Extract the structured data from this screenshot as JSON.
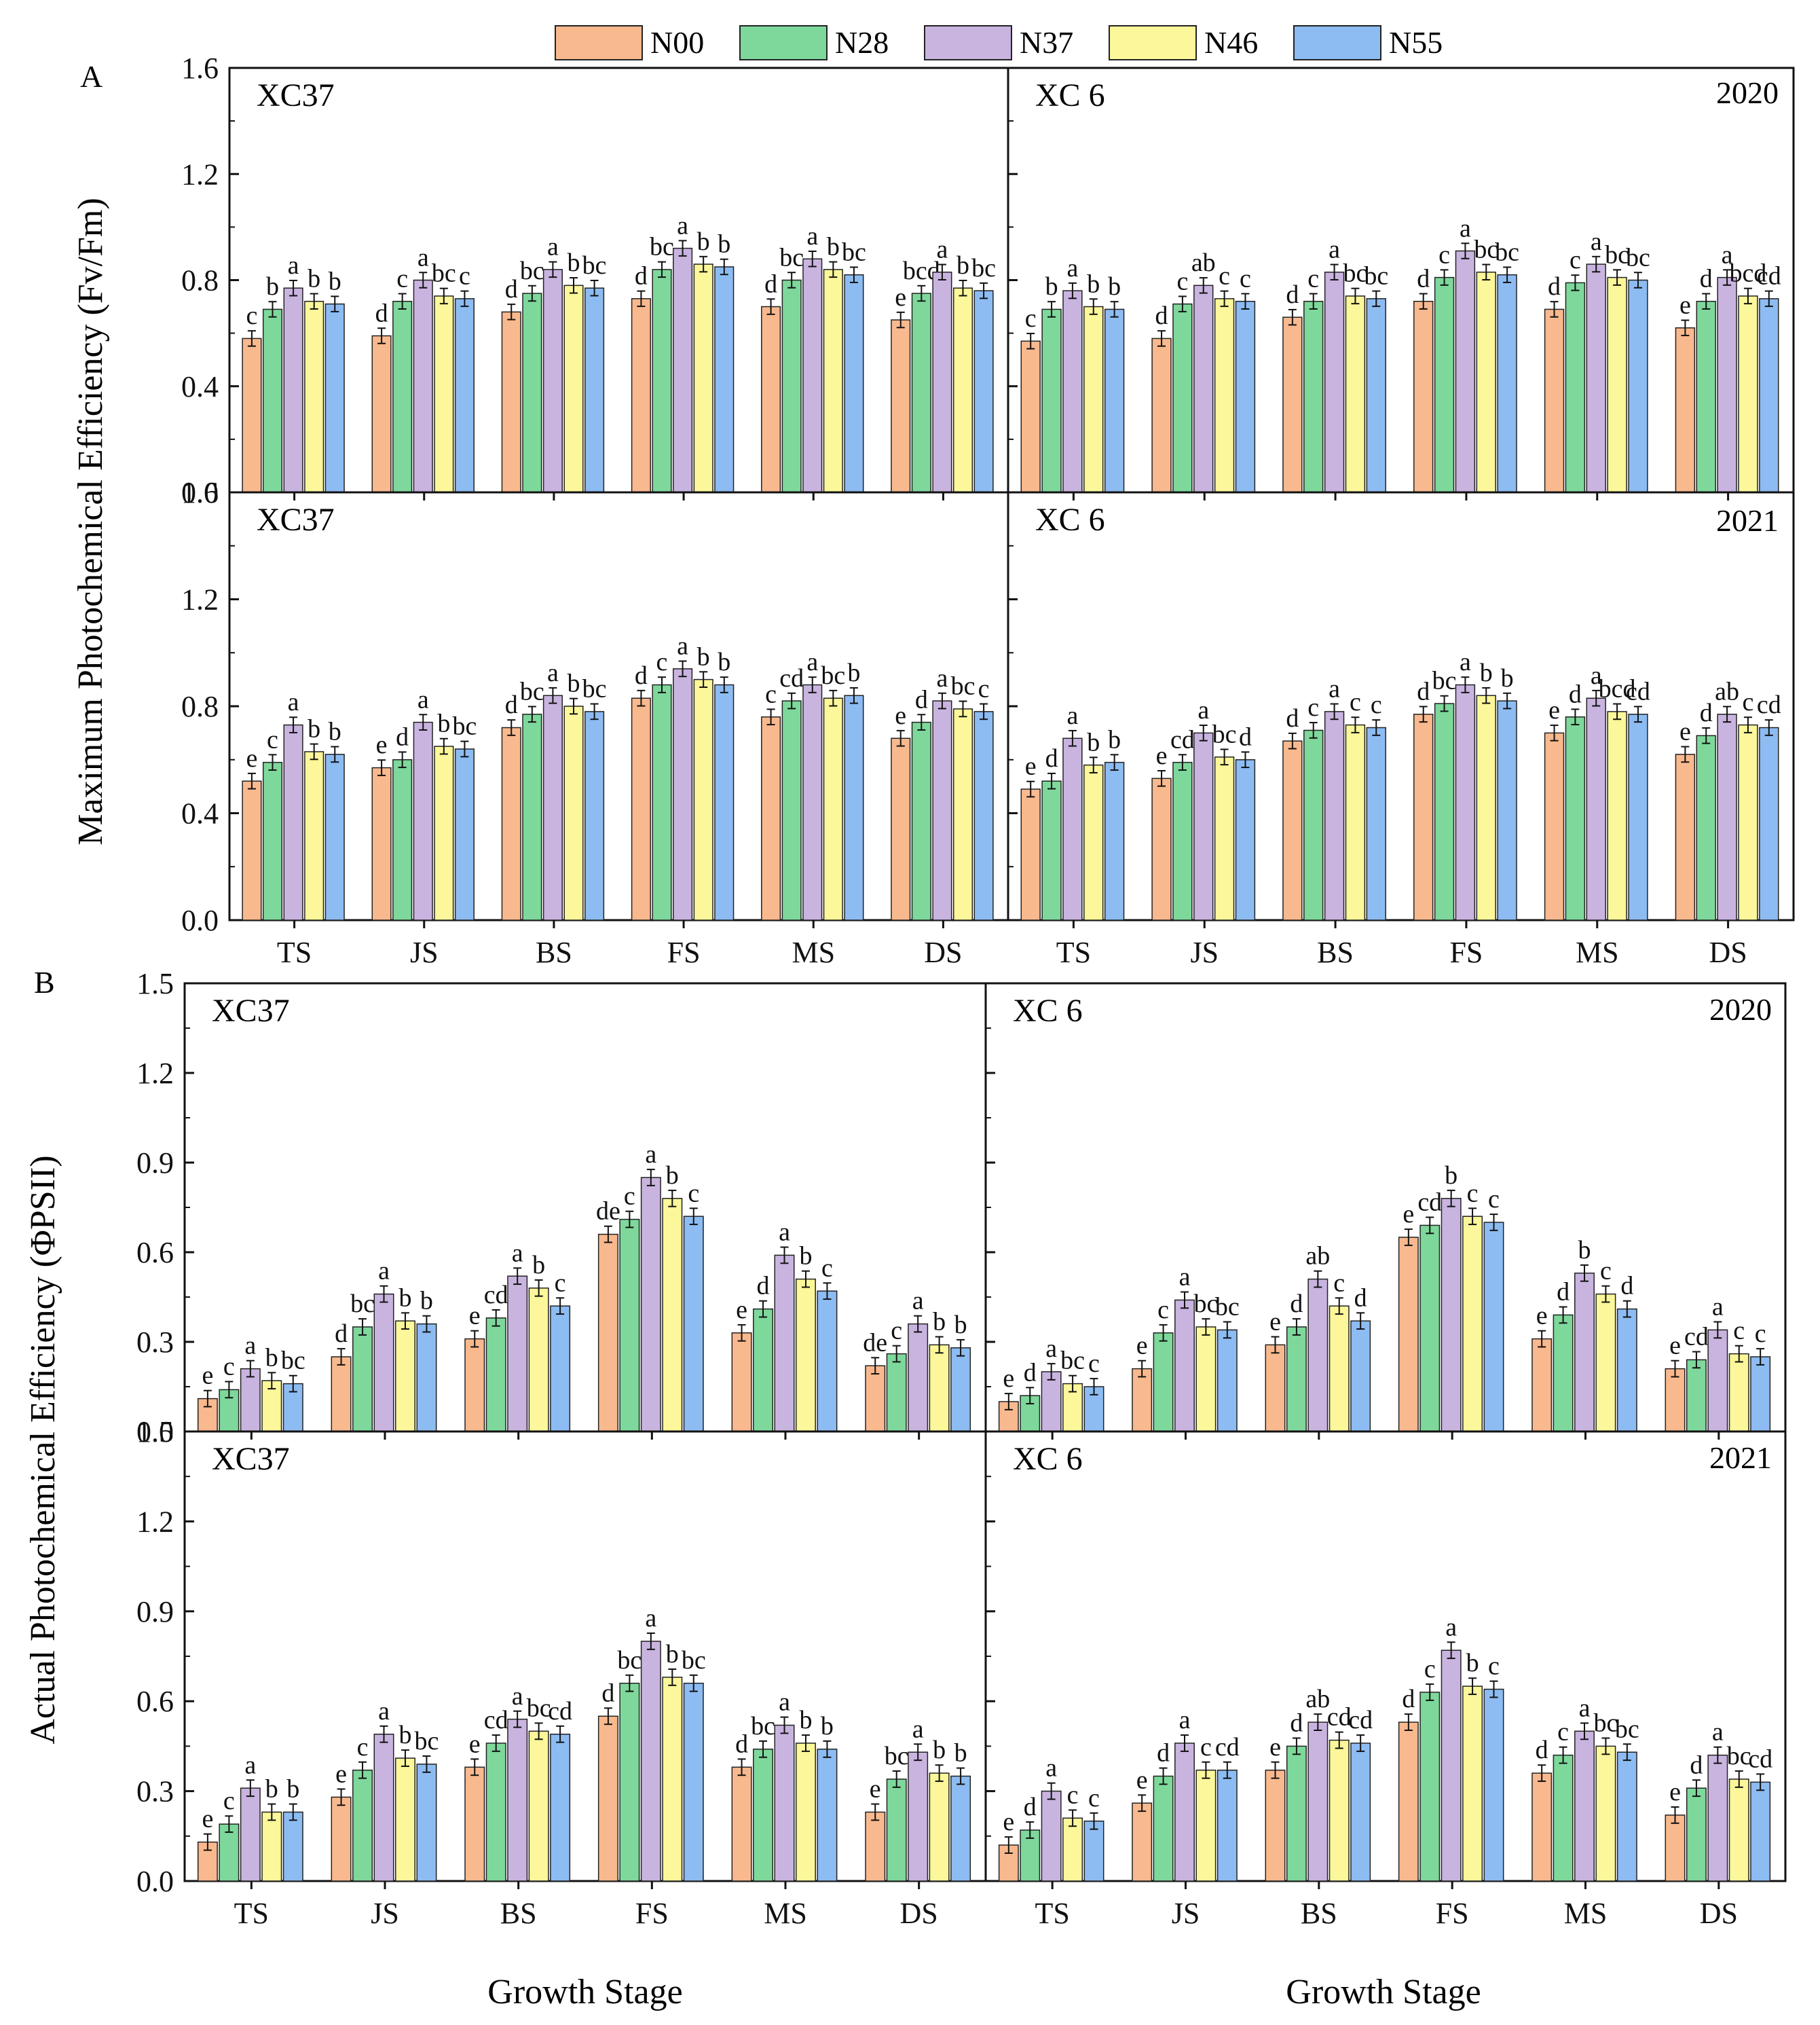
{
  "figure": {
    "panel_labels": [
      "A",
      "B"
    ],
    "year_labels": [
      "2020",
      "2021"
    ],
    "xlabel": "Growth Stage",
    "ylabel_A": "Maximum Photochemical Efficiency (Fv/Fm)",
    "ylabel_B": "Actual Photochemical Efficiency (ΦPSII)",
    "legend": [
      {
        "name": "N00",
        "color": "#f9b98e"
      },
      {
        "name": "N28",
        "color": "#7ed89b"
      },
      {
        "name": "N37",
        "color": "#c9b4e0"
      },
      {
        "name": "N46",
        "color": "#fbf79a"
      },
      {
        "name": "N55",
        "color": "#8dbcf2"
      }
    ]
  },
  "chart_data": [
    {
      "type": "bar",
      "panel": "A",
      "year": "2020",
      "title": "XC37",
      "categories": [
        "TS",
        "JS",
        "BS",
        "FS",
        "MS",
        "DS"
      ],
      "ylim": [
        0,
        1.6
      ],
      "yticks": [
        "0.0",
        "0.4",
        "0.8",
        "1.2",
        "1.6"
      ],
      "series": [
        {
          "name": "N00",
          "values": [
            0.58,
            0.59,
            0.68,
            0.73,
            0.7,
            0.65
          ]
        },
        {
          "name": "N28",
          "values": [
            0.69,
            0.72,
            0.75,
            0.84,
            0.8,
            0.75
          ]
        },
        {
          "name": "N37",
          "values": [
            0.77,
            0.8,
            0.84,
            0.92,
            0.88,
            0.83
          ]
        },
        {
          "name": "N46",
          "values": [
            0.72,
            0.74,
            0.78,
            0.86,
            0.84,
            0.77
          ]
        },
        {
          "name": "N55",
          "values": [
            0.71,
            0.73,
            0.77,
            0.85,
            0.82,
            0.76
          ]
        }
      ],
      "letters": [
        [
          "c",
          "b",
          "a",
          "b",
          "b"
        ],
        [
          "d",
          "c",
          "a",
          "bc",
          "c"
        ],
        [
          "d",
          "bc",
          "a",
          "b",
          "bc"
        ],
        [
          "d",
          "bc",
          "a",
          "b",
          "b"
        ],
        [
          "d",
          "bc",
          "a",
          "b",
          "bc"
        ],
        [
          "e",
          "bcd",
          "a",
          "b",
          "bc"
        ]
      ]
    },
    {
      "type": "bar",
      "panel": "A",
      "year": "2020",
      "title": "XC 6",
      "categories": [
        "TS",
        "JS",
        "BS",
        "FS",
        "MS",
        "DS"
      ],
      "ylim": [
        0,
        1.6
      ],
      "yticks": [
        "0.0",
        "0.4",
        "0.8",
        "1.2",
        "1.6"
      ],
      "series": [
        {
          "name": "N00",
          "values": [
            0.57,
            0.58,
            0.66,
            0.72,
            0.69,
            0.62
          ]
        },
        {
          "name": "N28",
          "values": [
            0.69,
            0.71,
            0.72,
            0.81,
            0.79,
            0.72
          ]
        },
        {
          "name": "N37",
          "values": [
            0.76,
            0.78,
            0.83,
            0.91,
            0.86,
            0.81
          ]
        },
        {
          "name": "N46",
          "values": [
            0.7,
            0.73,
            0.74,
            0.83,
            0.81,
            0.74
          ]
        },
        {
          "name": "N55",
          "values": [
            0.69,
            0.72,
            0.73,
            0.82,
            0.8,
            0.73
          ]
        }
      ],
      "letters": [
        [
          "c",
          "b",
          "a",
          "b",
          "b"
        ],
        [
          "d",
          "c",
          "ab",
          "c",
          "c"
        ],
        [
          "d",
          "c",
          "a",
          "bc",
          "bc"
        ],
        [
          "d",
          "c",
          "a",
          "bc",
          "bc"
        ],
        [
          "d",
          "c",
          "a",
          "bc",
          "bc"
        ],
        [
          "e",
          "d",
          "a",
          "bcd",
          "cd"
        ]
      ]
    },
    {
      "type": "bar",
      "panel": "A",
      "year": "2021",
      "title": "XC37",
      "categories": [
        "TS",
        "JS",
        "BS",
        "FS",
        "MS",
        "DS"
      ],
      "ylim": [
        0,
        1.6
      ],
      "yticks": [
        "0.0",
        "0.4",
        "0.8",
        "1.2",
        "1.6"
      ],
      "series": [
        {
          "name": "N00",
          "values": [
            0.52,
            0.57,
            0.72,
            0.83,
            0.76,
            0.68
          ]
        },
        {
          "name": "N28",
          "values": [
            0.59,
            0.6,
            0.77,
            0.88,
            0.82,
            0.74
          ]
        },
        {
          "name": "N37",
          "values": [
            0.73,
            0.74,
            0.84,
            0.94,
            0.88,
            0.82
          ]
        },
        {
          "name": "N46",
          "values": [
            0.63,
            0.65,
            0.8,
            0.9,
            0.83,
            0.79
          ]
        },
        {
          "name": "N55",
          "values": [
            0.62,
            0.64,
            0.78,
            0.88,
            0.84,
            0.78
          ]
        }
      ],
      "letters": [
        [
          "e",
          "c",
          "a",
          "b",
          "b"
        ],
        [
          "e",
          "d",
          "a",
          "b",
          "bc"
        ],
        [
          "d",
          "bc",
          "a",
          "b",
          "bc"
        ],
        [
          "d",
          "c",
          "a",
          "b",
          "b"
        ],
        [
          "c",
          "cd",
          "a",
          "bc",
          "b"
        ],
        [
          "e",
          "d",
          "a",
          "bc",
          "c"
        ]
      ]
    },
    {
      "type": "bar",
      "panel": "A",
      "year": "2021",
      "title": "XC 6",
      "categories": [
        "TS",
        "JS",
        "BS",
        "FS",
        "MS",
        "DS"
      ],
      "ylim": [
        0,
        1.6
      ],
      "yticks": [
        "0.0",
        "0.4",
        "0.8",
        "1.2",
        "1.6"
      ],
      "series": [
        {
          "name": "N00",
          "values": [
            0.49,
            0.53,
            0.67,
            0.77,
            0.7,
            0.62
          ]
        },
        {
          "name": "N28",
          "values": [
            0.52,
            0.59,
            0.71,
            0.81,
            0.76,
            0.69
          ]
        },
        {
          "name": "N37",
          "values": [
            0.68,
            0.7,
            0.78,
            0.88,
            0.83,
            0.77
          ]
        },
        {
          "name": "N46",
          "values": [
            0.58,
            0.61,
            0.73,
            0.84,
            0.78,
            0.73
          ]
        },
        {
          "name": "N55",
          "values": [
            0.59,
            0.6,
            0.72,
            0.82,
            0.77,
            0.72
          ]
        }
      ],
      "letters": [
        [
          "e",
          "d",
          "a",
          "b",
          "b"
        ],
        [
          "e",
          "cd",
          "a",
          "bc",
          "d"
        ],
        [
          "d",
          "c",
          "a",
          "c",
          "c"
        ],
        [
          "d",
          "bc",
          "a",
          "b",
          "b"
        ],
        [
          "e",
          "d",
          "a",
          "bcd",
          "cd"
        ],
        [
          "e",
          "d",
          "ab",
          "c",
          "cd"
        ]
      ]
    },
    {
      "type": "bar",
      "panel": "B",
      "year": "2020",
      "title": "XC37",
      "categories": [
        "TS",
        "JS",
        "BS",
        "FS",
        "MS",
        "DS"
      ],
      "ylim": [
        0,
        1.5
      ],
      "yticks": [
        "0.0",
        "0.3",
        "0.6",
        "0.9",
        "1.2",
        "1.5"
      ],
      "series": [
        {
          "name": "N00",
          "values": [
            0.11,
            0.25,
            0.31,
            0.66,
            0.33,
            0.22
          ]
        },
        {
          "name": "N28",
          "values": [
            0.14,
            0.35,
            0.38,
            0.71,
            0.41,
            0.26
          ]
        },
        {
          "name": "N37",
          "values": [
            0.21,
            0.46,
            0.52,
            0.85,
            0.59,
            0.36
          ]
        },
        {
          "name": "N46",
          "values": [
            0.17,
            0.37,
            0.48,
            0.78,
            0.51,
            0.29
          ]
        },
        {
          "name": "N55",
          "values": [
            0.16,
            0.36,
            0.42,
            0.72,
            0.47,
            0.28
          ]
        }
      ],
      "letters": [
        [
          "e",
          "c",
          "a",
          "b",
          "bc"
        ],
        [
          "d",
          "bc",
          "a",
          "b",
          "b"
        ],
        [
          "e",
          "cd",
          "a",
          "b",
          "c"
        ],
        [
          "de",
          "c",
          "a",
          "b",
          "c"
        ],
        [
          "e",
          "d",
          "a",
          "b",
          "c"
        ],
        [
          "de",
          "c",
          "a",
          "b",
          "b"
        ]
      ]
    },
    {
      "type": "bar",
      "panel": "B",
      "year": "2020",
      "title": "XC 6",
      "categories": [
        "TS",
        "JS",
        "BS",
        "FS",
        "MS",
        "DS"
      ],
      "ylim": [
        0,
        1.5
      ],
      "yticks": [
        "0.0",
        "0.3",
        "0.6",
        "0.9",
        "1.2",
        "1.5"
      ],
      "series": [
        {
          "name": "N00",
          "values": [
            0.1,
            0.21,
            0.29,
            0.65,
            0.31,
            0.21
          ]
        },
        {
          "name": "N28",
          "values": [
            0.12,
            0.33,
            0.35,
            0.69,
            0.39,
            0.24
          ]
        },
        {
          "name": "N37",
          "values": [
            0.2,
            0.44,
            0.51,
            0.78,
            0.53,
            0.34
          ]
        },
        {
          "name": "N46",
          "values": [
            0.16,
            0.35,
            0.42,
            0.72,
            0.46,
            0.26
          ]
        },
        {
          "name": "N55",
          "values": [
            0.15,
            0.34,
            0.37,
            0.7,
            0.41,
            0.25
          ]
        }
      ],
      "letters": [
        [
          "e",
          "d",
          "a",
          "bc",
          "c"
        ],
        [
          "e",
          "c",
          "a",
          "bc",
          "bc"
        ],
        [
          "e",
          "d",
          "ab",
          "c",
          "d"
        ],
        [
          "e",
          "cd",
          "b",
          "c",
          "c"
        ],
        [
          "e",
          "d",
          "b",
          "c",
          "d"
        ],
        [
          "e",
          "cd",
          "a",
          "c",
          "c"
        ]
      ]
    },
    {
      "type": "bar",
      "panel": "B",
      "year": "2021",
      "title": "XC37",
      "categories": [
        "TS",
        "JS",
        "BS",
        "FS",
        "MS",
        "DS"
      ],
      "ylim": [
        0,
        1.5
      ],
      "yticks": [
        "0.0",
        "0.3",
        "0.6",
        "0.9",
        "1.2",
        "1.5"
      ],
      "series": [
        {
          "name": "N00",
          "values": [
            0.13,
            0.28,
            0.38,
            0.55,
            0.38,
            0.23
          ]
        },
        {
          "name": "N28",
          "values": [
            0.19,
            0.37,
            0.46,
            0.66,
            0.44,
            0.34
          ]
        },
        {
          "name": "N37",
          "values": [
            0.31,
            0.49,
            0.54,
            0.8,
            0.52,
            0.43
          ]
        },
        {
          "name": "N46",
          "values": [
            0.23,
            0.41,
            0.5,
            0.68,
            0.46,
            0.36
          ]
        },
        {
          "name": "N55",
          "values": [
            0.23,
            0.39,
            0.49,
            0.66,
            0.44,
            0.35
          ]
        }
      ],
      "letters": [
        [
          "e",
          "c",
          "a",
          "b",
          "b"
        ],
        [
          "e",
          "c",
          "a",
          "b",
          "bc"
        ],
        [
          "e",
          "cd",
          "a",
          "bc",
          "cd"
        ],
        [
          "d",
          "bc",
          "a",
          "b",
          "bc"
        ],
        [
          "d",
          "bc",
          "a",
          "b",
          "b"
        ],
        [
          "e",
          "bc",
          "a",
          "b",
          "b"
        ]
      ]
    },
    {
      "type": "bar",
      "panel": "B",
      "year": "2021",
      "title": "XC 6",
      "categories": [
        "TS",
        "JS",
        "BS",
        "FS",
        "MS",
        "DS"
      ],
      "ylim": [
        0,
        1.5
      ],
      "yticks": [
        "0.0",
        "0.3",
        "0.6",
        "0.9",
        "1.2",
        "1.5"
      ],
      "series": [
        {
          "name": "N00",
          "values": [
            0.12,
            0.26,
            0.37,
            0.53,
            0.36,
            0.22
          ]
        },
        {
          "name": "N28",
          "values": [
            0.17,
            0.35,
            0.45,
            0.63,
            0.42,
            0.31
          ]
        },
        {
          "name": "N37",
          "values": [
            0.3,
            0.46,
            0.53,
            0.77,
            0.5,
            0.42
          ]
        },
        {
          "name": "N46",
          "values": [
            0.21,
            0.37,
            0.47,
            0.65,
            0.45,
            0.34
          ]
        },
        {
          "name": "N55",
          "values": [
            0.2,
            0.37,
            0.46,
            0.64,
            0.43,
            0.33
          ]
        }
      ],
      "letters": [
        [
          "e",
          "d",
          "a",
          "c",
          "c"
        ],
        [
          "e",
          "d",
          "a",
          "c",
          "cd"
        ],
        [
          "e",
          "d",
          "ab",
          "cd",
          "cd"
        ],
        [
          "d",
          "c",
          "a",
          "b",
          "c"
        ],
        [
          "d",
          "c",
          "a",
          "bc",
          "bc"
        ],
        [
          "e",
          "d",
          "a",
          "bc",
          "cd"
        ]
      ]
    }
  ]
}
